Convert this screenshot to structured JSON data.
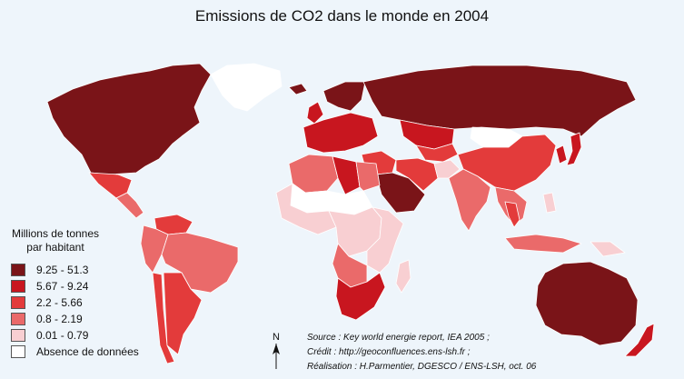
{
  "title": "Emissions de CO2 dans le monde en 2004",
  "colors": {
    "ocean": "#eef5fb",
    "border": "#ffffff",
    "c5": "#7a1418",
    "c4": "#c8161f",
    "c3": "#e33b3b",
    "c2": "#ea6a6a",
    "c1": "#f8cfd2",
    "c0": "#ffffff"
  },
  "legend": {
    "title": "Millions de tonnes par habitant",
    "items": [
      {
        "label": "9.25 - 51.3",
        "color": "#7a1418"
      },
      {
        "label": "5.67 - 9.24",
        "color": "#c8161f"
      },
      {
        "label": "2.2 - 5.66",
        "color": "#e33b3b"
      },
      {
        "label": "0.8 - 2.19",
        "color": "#ea6a6a"
      },
      {
        "label": "0.01 - 0.79",
        "color": "#f8cfd2"
      },
      {
        "label": "Absence de données",
        "color": "#ffffff"
      }
    ]
  },
  "credits": {
    "source": "Source : Key world energie report, IEA 2005 ;",
    "credit": "Crédit : http://geoconfluences.ens-lsh.fr ;",
    "realisation": "Réalisation : H.Parmentier, DGESCO / ENS-LSH, oct. 06"
  },
  "north_label": "N",
  "regions": [
    {
      "name": "north-america",
      "cls": "c5"
    },
    {
      "name": "mexico",
      "cls": "c3"
    },
    {
      "name": "central-america",
      "cls": "c2"
    },
    {
      "name": "greenland",
      "cls": "c0"
    },
    {
      "name": "south-america",
      "cls": "c2"
    },
    {
      "name": "brazil",
      "cls": "c2"
    },
    {
      "name": "venezuela",
      "cls": "c3"
    },
    {
      "name": "chile",
      "cls": "c3"
    },
    {
      "name": "argentina",
      "cls": "c3"
    },
    {
      "name": "western-europe",
      "cls": "c4"
    },
    {
      "name": "northern-europe",
      "cls": "c5"
    },
    {
      "name": "uk",
      "cls": "c4"
    },
    {
      "name": "iceland",
      "cls": "c5"
    },
    {
      "name": "russia",
      "cls": "c5"
    },
    {
      "name": "kazakhstan",
      "cls": "c4"
    },
    {
      "name": "central-asia",
      "cls": "c3"
    },
    {
      "name": "middle-east",
      "cls": "c3"
    },
    {
      "name": "saudi-arabia",
      "cls": "c5"
    },
    {
      "name": "iran",
      "cls": "c3"
    },
    {
      "name": "afghanistan",
      "cls": "c1"
    },
    {
      "name": "india",
      "cls": "c2"
    },
    {
      "name": "china",
      "cls": "c3"
    },
    {
      "name": "mongolia",
      "cls": "c0"
    },
    {
      "name": "japan",
      "cls": "c4"
    },
    {
      "name": "korea",
      "cls": "c4"
    },
    {
      "name": "southeast-asia",
      "cls": "c2"
    },
    {
      "name": "thailand",
      "cls": "c3"
    },
    {
      "name": "indonesia",
      "cls": "c2"
    },
    {
      "name": "philippines",
      "cls": "c1"
    },
    {
      "name": "north-africa",
      "cls": "c2"
    },
    {
      "name": "libya",
      "cls": "c4"
    },
    {
      "name": "egypt",
      "cls": "c2"
    },
    {
      "name": "west-africa",
      "cls": "c1"
    },
    {
      "name": "sahel",
      "cls": "c0"
    },
    {
      "name": "central-africa",
      "cls": "c1"
    },
    {
      "name": "east-africa",
      "cls": "c1"
    },
    {
      "name": "angola",
      "cls": "c2"
    },
    {
      "name": "south-africa",
      "cls": "c4"
    },
    {
      "name": "madagascar",
      "cls": "c1"
    },
    {
      "name": "australia",
      "cls": "c5"
    },
    {
      "name": "new-zealand",
      "cls": "c4"
    },
    {
      "name": "papua",
      "cls": "c1"
    }
  ]
}
